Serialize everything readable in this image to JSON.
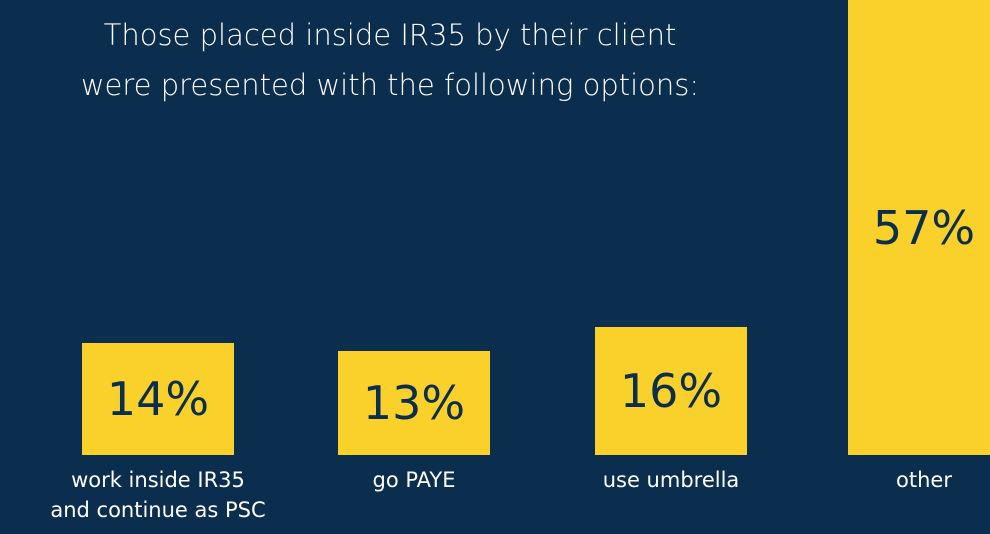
{
  "chart_data": {
    "type": "bar",
    "title": "Those placed inside IR35 by their client\nwere presented with the following options:",
    "categories": [
      "work inside IR35\nand continue as PSC",
      "go PAYE",
      "use umbrella",
      "other"
    ],
    "values": [
      14,
      13,
      16,
      57
    ],
    "value_labels": [
      "14%",
      "13%",
      "16%",
      "57%"
    ],
    "color": "#f9d12a"
  }
}
